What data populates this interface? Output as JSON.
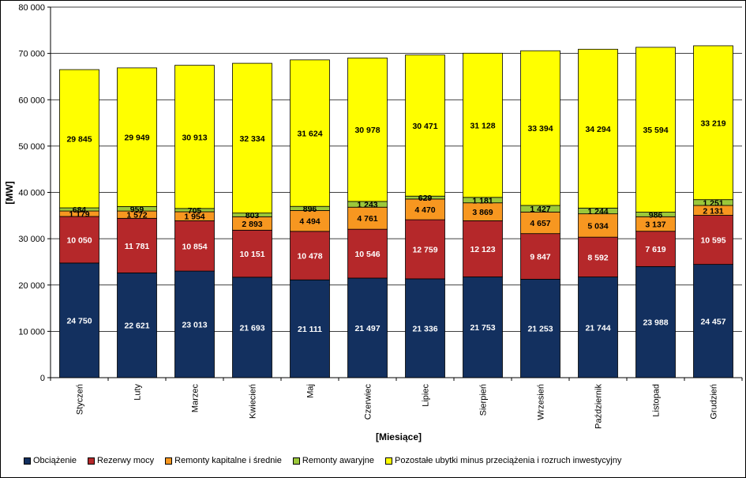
{
  "chart_data": {
    "type": "bar",
    "stacked": true,
    "xlabel": "[Miesiące]",
    "ylabel": "[MW]",
    "ylim": [
      0,
      80000
    ],
    "yticks": [
      0,
      10000,
      20000,
      30000,
      40000,
      50000,
      60000,
      70000,
      80000
    ],
    "ytick_labels": [
      "0",
      "10 000",
      "20 000",
      "30 000",
      "40 000",
      "50 000",
      "60 000",
      "70 000",
      "80 000"
    ],
    "grid": true,
    "legend_position": "bottom",
    "categories": [
      "Styczeń",
      "Luty",
      "Marzec",
      "Kwiecień",
      "Maj",
      "Czerwiec",
      "Lipiec",
      "Sierpień",
      "Wrzesień",
      "Październik",
      "Listopad",
      "Grudzień"
    ],
    "series": [
      {
        "name": "Obciążenie",
        "color": "#13305f",
        "label_color": "#ffffff",
        "values": [
          24750,
          22621,
          23013,
          21693,
          21111,
          21497,
          21336,
          21753,
          21253,
          21744,
          23988,
          24457
        ],
        "labels": [
          "24 750",
          "22 621",
          "23 013",
          "21 693",
          "21 111",
          "21 497",
          "21 336",
          "21 753",
          "21 253",
          "21 744",
          "23 988",
          "24 457"
        ]
      },
      {
        "name": "Rezerwy mocy",
        "color": "#b5282a",
        "label_color": "#ffffff",
        "values": [
          10050,
          11781,
          10854,
          10151,
          10478,
          10546,
          12759,
          12123,
          9847,
          8592,
          7619,
          10595
        ],
        "labels": [
          "10 050",
          "11 781",
          "10 854",
          "10 151",
          "10 478",
          "10 546",
          "12 759",
          "12 123",
          "9 847",
          "8 592",
          "7 619",
          "10 595"
        ]
      },
      {
        "name": "Remonty kapitalne i średnie",
        "color": "#f79720",
        "label_color": "#000000",
        "values": [
          1179,
          1572,
          1954,
          2893,
          4494,
          4761,
          4470,
          3869,
          4657,
          5034,
          3137,
          2131
        ],
        "labels": [
          "1 179",
          "1 572",
          "1 954",
          "2 893",
          "4 494",
          "4 761",
          "4 470",
          "3 869",
          "4 657",
          "5 034",
          "3 137",
          "2 131"
        ]
      },
      {
        "name": "Remonty awaryjne",
        "color": "#9bc83a",
        "label_color": "#000000",
        "values": [
          684,
          959,
          705,
          803,
          896,
          1243,
          629,
          1181,
          1427,
          1244,
          986,
          1251
        ],
        "labels": [
          "684",
          "959",
          "705",
          "803",
          "896",
          "1 243",
          "629",
          "1 181",
          "1 427",
          "1 244",
          "986",
          "1 251"
        ]
      },
      {
        "name": "Pozostałe ubytki minus przeciążenia i rozruch inwestycyjny",
        "color": "#ffff00",
        "label_color": "#000000",
        "values": [
          29845,
          29949,
          30913,
          32334,
          31624,
          30978,
          30471,
          31128,
          33394,
          34294,
          35594,
          33219
        ],
        "labels": [
          "29 845",
          "29 949",
          "30 913",
          "32 334",
          "31 624",
          "30 978",
          "30 471",
          "31 128",
          "33 394",
          "34 294",
          "35 594",
          "33 219"
        ]
      }
    ]
  }
}
